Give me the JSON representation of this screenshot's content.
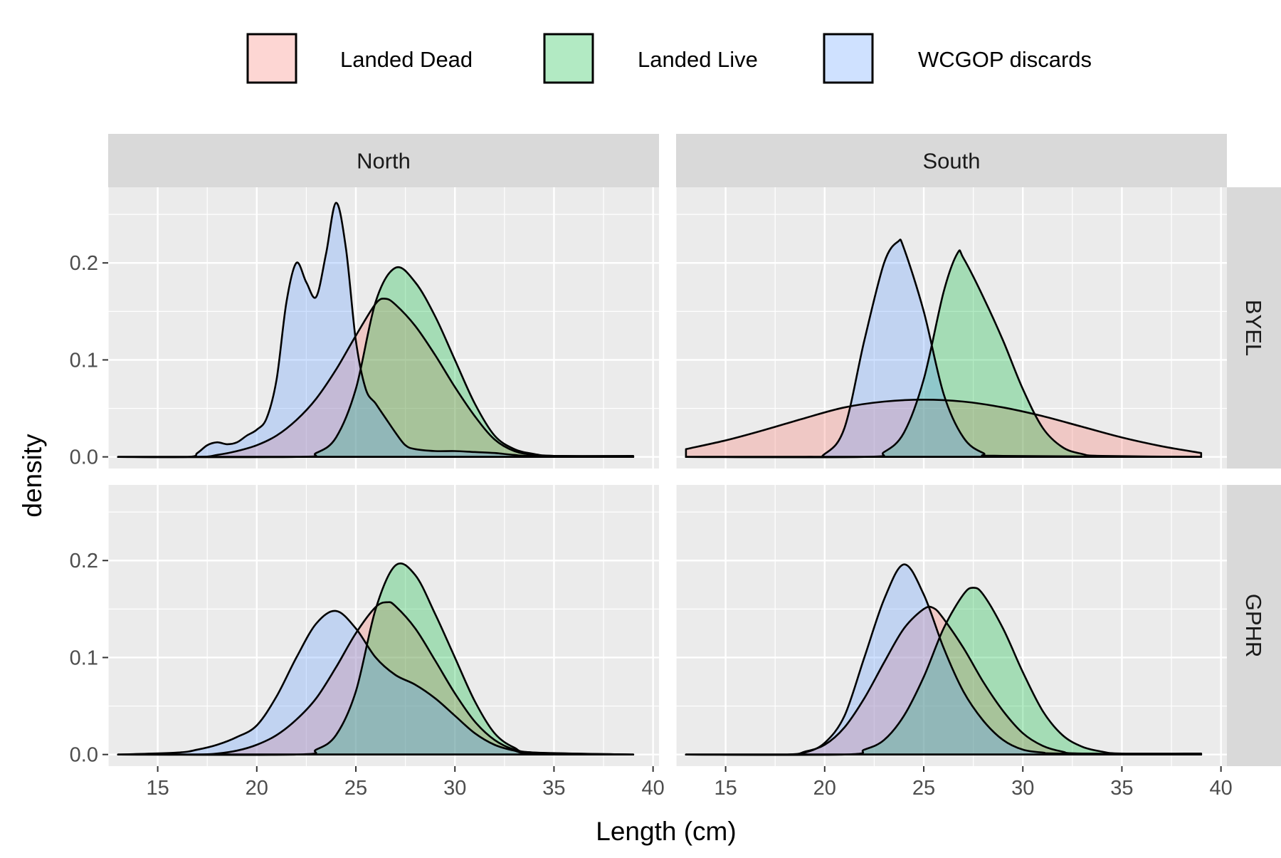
{
  "legend": {
    "items": [
      {
        "label": "Landed Dead",
        "color": "#F8766D"
      },
      {
        "label": "Landed Live",
        "color": "#00BA38"
      },
      {
        "label": "WCGOP discards",
        "color": "#619CFF"
      }
    ]
  },
  "axes": {
    "xlabel": "Length (cm)",
    "ylabel": "density"
  },
  "chart_data": {
    "type": "area",
    "description_of_marks": "faceted kernel density estimates of length by source (fill alpha ~0.3, black outline)",
    "facet_cols": [
      "North",
      "South"
    ],
    "facet_rows": [
      "BYEL",
      "GPHR"
    ],
    "x_range": [
      12.5,
      40.3
    ],
    "y_range": [
      -0.012,
      0.278
    ],
    "x_ticks": [
      15,
      20,
      25,
      30,
      35,
      40
    ],
    "y_ticks": [
      0.0,
      0.1,
      0.2
    ],
    "y_tick_labels": [
      "0.0",
      "0.1",
      "0.2"
    ],
    "grid": true,
    "legend_position": "top",
    "panels": [
      {
        "col": "North",
        "row": "BYEL",
        "series": [
          {
            "name": "Landed Dead",
            "points": [
              [
                13,
                0
              ],
              [
                17,
                0
              ],
              [
                18,
                0.002
              ],
              [
                19,
                0.006
              ],
              [
                20,
                0.012
              ],
              [
                21,
                0.022
              ],
              [
                22,
                0.038
              ],
              [
                23,
                0.06
              ],
              [
                24,
                0.09
              ],
              [
                25,
                0.125
              ],
              [
                26,
                0.158
              ],
              [
                26.5,
                0.163
              ],
              [
                27,
                0.157
              ],
              [
                28,
                0.135
              ],
              [
                29,
                0.105
              ],
              [
                30,
                0.072
              ],
              [
                31,
                0.042
              ],
              [
                32,
                0.018
              ],
              [
                33,
                0.006
              ],
              [
                34,
                0.002
              ],
              [
                35,
                0.001
              ],
              [
                39,
                0
              ]
            ]
          },
          {
            "name": "Landed Live",
            "points": [
              [
                13,
                0
              ],
              [
                22,
                0
              ],
              [
                23,
                0.004
              ],
              [
                24,
                0.02
              ],
              [
                25,
                0.07
              ],
              [
                26,
                0.16
              ],
              [
                27,
                0.195
              ],
              [
                28,
                0.18
              ],
              [
                29,
                0.145
              ],
              [
                30,
                0.1
              ],
              [
                31,
                0.055
              ],
              [
                32,
                0.022
              ],
              [
                33,
                0.008
              ],
              [
                34,
                0.003
              ],
              [
                35,
                0.001
              ],
              [
                39,
                0
              ]
            ]
          },
          {
            "name": "WCGOP discards",
            "points": [
              [
                13,
                0
              ],
              [
                16.5,
                0
              ],
              [
                17,
                0.004
              ],
              [
                17.5,
                0.012
              ],
              [
                18,
                0.015
              ],
              [
                18.5,
                0.013
              ],
              [
                19,
                0.015
              ],
              [
                19.5,
                0.022
              ],
              [
                20,
                0.028
              ],
              [
                20.5,
                0.04
              ],
              [
                21,
                0.08
              ],
              [
                21.5,
                0.16
              ],
              [
                22,
                0.2
              ],
              [
                22.5,
                0.18
              ],
              [
                23,
                0.165
              ],
              [
                23.5,
                0.21
              ],
              [
                24,
                0.262
              ],
              [
                24.5,
                0.215
              ],
              [
                25,
                0.12
              ],
              [
                25.5,
                0.07
              ],
              [
                26,
                0.055
              ],
              [
                26.5,
                0.04
              ],
              [
                27,
                0.025
              ],
              [
                27.5,
                0.012
              ],
              [
                28,
                0.008
              ],
              [
                29,
                0.006
              ],
              [
                30,
                0.006
              ],
              [
                31,
                0.005
              ],
              [
                32,
                0.004
              ],
              [
                33,
                0.002
              ],
              [
                34,
                0.001
              ],
              [
                39,
                0.001
              ]
            ]
          }
        ]
      },
      {
        "col": "South",
        "row": "BYEL",
        "series": [
          {
            "name": "Landed Dead",
            "points": [
              [
                13,
                0.008
              ],
              [
                15,
                0.017
              ],
              [
                17,
                0.028
              ],
              [
                19,
                0.04
              ],
              [
                21,
                0.051
              ],
              [
                23,
                0.057
              ],
              [
                25,
                0.059
              ],
              [
                27,
                0.057
              ],
              [
                29,
                0.051
              ],
              [
                31,
                0.042
              ],
              [
                33,
                0.031
              ],
              [
                35,
                0.02
              ],
              [
                37,
                0.011
              ],
              [
                39,
                0.004
              ]
            ]
          },
          {
            "name": "Landed Live",
            "points": [
              [
                13,
                0
              ],
              [
                22,
                0
              ],
              [
                23,
                0.005
              ],
              [
                24,
                0.025
              ],
              [
                25,
                0.08
              ],
              [
                26,
                0.17
              ],
              [
                26.7,
                0.21
              ],
              [
                27,
                0.205
              ],
              [
                28,
                0.165
              ],
              [
                29,
                0.12
              ],
              [
                30,
                0.07
              ],
              [
                31,
                0.03
              ],
              [
                32,
                0.01
              ],
              [
                33,
                0.003
              ],
              [
                34,
                0.001
              ],
              [
                39,
                0
              ]
            ]
          },
          {
            "name": "WCGOP discards",
            "points": [
              [
                13,
                0
              ],
              [
                19,
                0
              ],
              [
                20,
                0.003
              ],
              [
                21,
                0.03
              ],
              [
                22,
                0.12
              ],
              [
                23,
                0.2
              ],
              [
                23.7,
                0.222
              ],
              [
                24,
                0.215
              ],
              [
                25,
                0.15
              ],
              [
                26,
                0.065
              ],
              [
                27,
                0.02
              ],
              [
                28,
                0.004
              ],
              [
                29,
                0.001
              ],
              [
                39,
                0
              ]
            ]
          }
        ]
      },
      {
        "col": "North",
        "row": "GPHR",
        "series": [
          {
            "name": "Landed Dead",
            "points": [
              [
                13,
                0
              ],
              [
                17,
                0
              ],
              [
                18,
                0.001
              ],
              [
                19,
                0.004
              ],
              [
                20,
                0.01
              ],
              [
                21,
                0.02
              ],
              [
                22,
                0.036
              ],
              [
                23,
                0.058
              ],
              [
                24,
                0.09
              ],
              [
                25,
                0.125
              ],
              [
                26,
                0.152
              ],
              [
                26.6,
                0.157
              ],
              [
                27,
                0.153
              ],
              [
                28,
                0.13
              ],
              [
                29,
                0.097
              ],
              [
                30,
                0.063
              ],
              [
                31,
                0.034
              ],
              [
                32,
                0.015
              ],
              [
                33,
                0.005
              ],
              [
                34,
                0.002
              ],
              [
                39,
                0
              ]
            ]
          },
          {
            "name": "Landed Live",
            "points": [
              [
                13,
                0
              ],
              [
                22,
                0
              ],
              [
                23,
                0.005
              ],
              [
                24,
                0.02
              ],
              [
                25,
                0.065
              ],
              [
                26,
                0.15
              ],
              [
                27,
                0.195
              ],
              [
                28,
                0.185
              ],
              [
                29,
                0.145
              ],
              [
                30,
                0.1
              ],
              [
                31,
                0.055
              ],
              [
                32,
                0.022
              ],
              [
                33,
                0.007
              ],
              [
                34,
                0.002
              ],
              [
                39,
                0
              ]
            ]
          },
          {
            "name": "WCGOP discards",
            "points": [
              [
                13,
                0
              ],
              [
                16,
                0.002
              ],
              [
                17,
                0.005
              ],
              [
                18,
                0.01
              ],
              [
                19,
                0.018
              ],
              [
                20,
                0.03
              ],
              [
                21,
                0.06
              ],
              [
                22,
                0.1
              ],
              [
                23,
                0.135
              ],
              [
                24,
                0.148
              ],
              [
                25,
                0.13
              ],
              [
                26,
                0.1
              ],
              [
                27,
                0.082
              ],
              [
                28,
                0.072
              ],
              [
                29,
                0.058
              ],
              [
                30,
                0.04
              ],
              [
                31,
                0.022
              ],
              [
                32,
                0.01
              ],
              [
                33,
                0.004
              ],
              [
                34,
                0.001
              ],
              [
                39,
                0
              ]
            ]
          }
        ]
      },
      {
        "col": "South",
        "row": "GPHR",
        "series": [
          {
            "name": "Landed Dead",
            "points": [
              [
                13,
                0
              ],
              [
                18,
                0
              ],
              [
                19,
                0.003
              ],
              [
                20,
                0.01
              ],
              [
                21,
                0.028
              ],
              [
                22,
                0.058
              ],
              [
                23,
                0.095
              ],
              [
                24,
                0.13
              ],
              [
                25,
                0.15
              ],
              [
                25.5,
                0.151
              ],
              [
                26,
                0.14
              ],
              [
                27,
                0.11
              ],
              [
                28,
                0.075
              ],
              [
                29,
                0.045
              ],
              [
                30,
                0.022
              ],
              [
                31,
                0.009
              ],
              [
                32,
                0.003
              ],
              [
                33,
                0.001
              ],
              [
                39,
                0
              ]
            ]
          },
          {
            "name": "Landed Live",
            "points": [
              [
                13,
                0
              ],
              [
                21,
                0
              ],
              [
                22,
                0.005
              ],
              [
                23,
                0.015
              ],
              [
                24,
                0.04
              ],
              [
                25,
                0.08
              ],
              [
                26,
                0.13
              ],
              [
                27,
                0.165
              ],
              [
                27.5,
                0.172
              ],
              [
                28,
                0.165
              ],
              [
                29,
                0.13
              ],
              [
                30,
                0.085
              ],
              [
                31,
                0.045
              ],
              [
                32,
                0.02
              ],
              [
                33,
                0.008
              ],
              [
                34,
                0.003
              ],
              [
                35,
                0.001
              ],
              [
                39,
                0.001
              ]
            ]
          },
          {
            "name": "WCGOP discards",
            "points": [
              [
                13,
                0
              ],
              [
                18,
                0
              ],
              [
                19,
                0.002
              ],
              [
                20,
                0.012
              ],
              [
                21,
                0.04
              ],
              [
                22,
                0.1
              ],
              [
                23,
                0.16
              ],
              [
                24,
                0.196
              ],
              [
                25,
                0.165
              ],
              [
                26,
                0.11
              ],
              [
                27,
                0.065
              ],
              [
                28,
                0.035
              ],
              [
                29,
                0.015
              ],
              [
                30,
                0.005
              ],
              [
                31,
                0.002
              ],
              [
                32,
                0.001
              ],
              [
                39,
                0
              ]
            ]
          }
        ]
      }
    ]
  }
}
